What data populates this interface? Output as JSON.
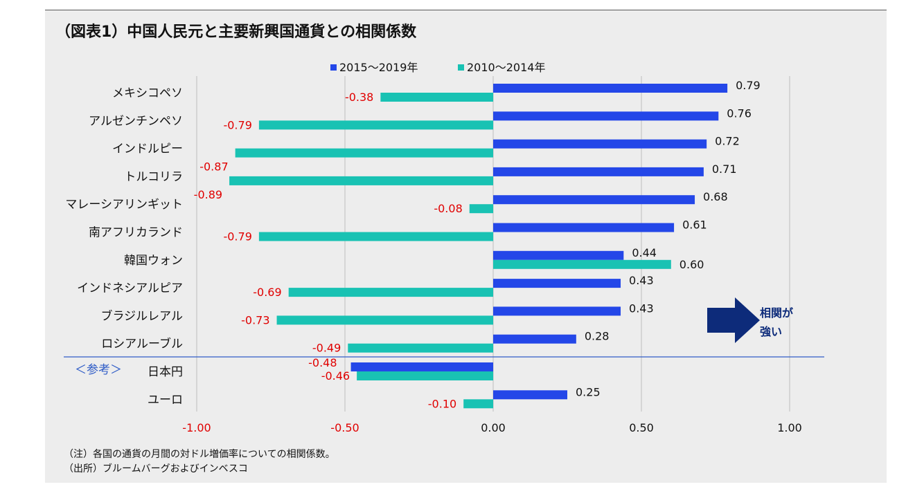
{
  "title": "（図表1）中国人民元と主要新興国通貨との相関係数",
  "notes": {
    "note": "（注）各国の通貨の月間の対ドル増価率についての相関係数。",
    "source": "（出所）ブルームバーグおよびインベスコ"
  },
  "annotation": {
    "label_line1": "相関が",
    "label_line2": "強い",
    "arrow_color": "#0d2b7a"
  },
  "reference_label": "＜参考＞",
  "colors": {
    "series_recent": "#2447e8",
    "series_old": "#19c2b3",
    "negative_label": "#e00000",
    "positive_label": "#111111",
    "reference_label": "#2f5cc7",
    "separator": "#2f5cc7"
  },
  "chart_data": {
    "type": "bar",
    "orientation": "horizontal",
    "categories": [
      "メキシコペソ",
      "アルゼンチンペソ",
      "インドルピー",
      "トルコリラ",
      "マレーシアリンギット",
      "南アフリカランド",
      "韓国ウォン",
      "インドネシアルピア",
      "ブラジルレアル",
      "ロシアルーブル",
      "日本円",
      "ユーロ"
    ],
    "series": [
      {
        "name": "2015～2019年",
        "values": [
          0.79,
          0.76,
          0.72,
          0.71,
          0.68,
          0.61,
          0.44,
          0.43,
          0.43,
          0.28,
          -0.48,
          0.25
        ]
      },
      {
        "name": "2010～2014年",
        "values": [
          -0.38,
          -0.79,
          -0.87,
          -0.89,
          -0.08,
          -0.79,
          0.6,
          -0.69,
          -0.73,
          -0.49,
          -0.46,
          -0.1
        ]
      }
    ],
    "xlim": [
      -1.0,
      1.0
    ],
    "xticks": [
      "-1.00",
      "-0.50",
      "0.00",
      "0.50",
      "1.00"
    ],
    "grid": "vertical",
    "legend_position": "top"
  }
}
